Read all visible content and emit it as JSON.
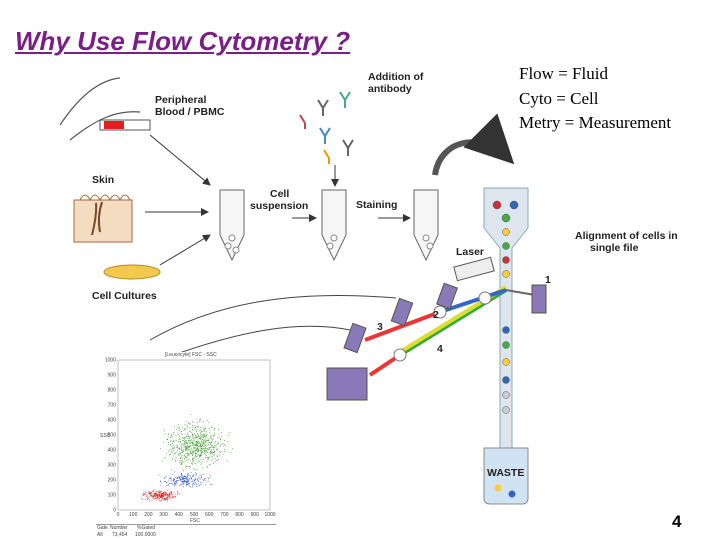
{
  "title": "Why Use Flow Cytometry ?",
  "definitions": [
    "Flow = Fluid",
    "Cyto = Cell",
    "Metry = Measurement"
  ],
  "diagram": {
    "peripheral_blood": [
      "Peripheral",
      "Blood / PBMC"
    ],
    "addition_of_antibody": [
      "Addition of",
      "antibody"
    ],
    "skin": "Skin",
    "cell_cultures": "Cell Cultures",
    "cell_suspension": [
      "Cell",
      "suspension"
    ],
    "staining": "Staining",
    "laser": "Laser",
    "alignment": [
      "Alignment of cells in",
      "single file"
    ],
    "detectors": [
      "1",
      "2",
      "3",
      "4"
    ],
    "waste": "WASTE"
  },
  "inset": {
    "plot_title": "[Leucocyte] FSC - SSC",
    "y_label": "SSC",
    "x_label": "FSC",
    "yticks": [
      0,
      100,
      200,
      300,
      400,
      500,
      600,
      700,
      800,
      900,
      1000
    ],
    "xticks": [
      0,
      100,
      200,
      300,
      400,
      500,
      600,
      700,
      800,
      900,
      1000
    ],
    "table_header": [
      "Gate",
      "Number",
      "%Gated"
    ],
    "table_row": [
      "All",
      "73,454",
      "100.0000"
    ]
  },
  "page_number": "4"
}
